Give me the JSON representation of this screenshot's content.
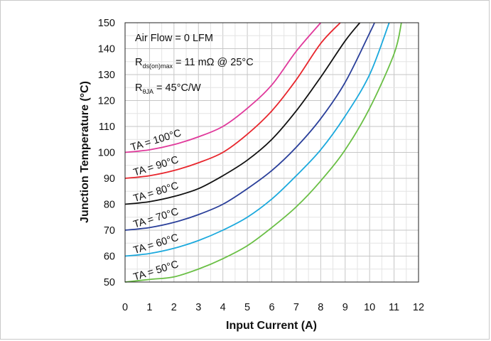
{
  "chart_data": {
    "type": "line",
    "xlabel": "Input Current (A)",
    "ylabel": "Junction Temperature (°C)",
    "xlim": [
      0,
      12
    ],
    "ylim": [
      50,
      150
    ],
    "x_ticks": [
      "0",
      "1",
      "2",
      "3",
      "4",
      "5",
      "6",
      "7",
      "8",
      "9",
      "10",
      "11",
      "12"
    ],
    "y_ticks": [
      "50",
      "60",
      "70",
      "80",
      "90",
      "100",
      "110",
      "120",
      "130",
      "140",
      "150"
    ],
    "grid": true,
    "annotations": {
      "air_flow": "Air Flow = 0 LFM",
      "rds_prefix": "R",
      "rds_sub": "ds(on)max",
      "rds_value": " = 11 mΩ @ 25°C",
      "rth_prefix": "R",
      "rth_sub": "θJA",
      "rth_value": " = 45°C/W"
    },
    "series": [
      {
        "label": "TA = 100°C",
        "color": "#e0399b",
        "x": [
          0,
          1,
          2,
          3,
          4,
          5,
          6,
          7,
          8
        ],
        "y": [
          100,
          101,
          103,
          106,
          110,
          117,
          126,
          139,
          150
        ]
      },
      {
        "label": "TA = 90°C",
        "color": "#e8262d",
        "x": [
          0,
          1,
          2,
          3,
          4,
          5,
          6,
          7,
          8,
          8.8
        ],
        "y": [
          90,
          91,
          93,
          96,
          100,
          107,
          116,
          128,
          142,
          150
        ]
      },
      {
        "label": "TA = 80°C",
        "color": "#111111",
        "x": [
          0,
          1,
          2,
          3,
          4,
          5,
          6,
          7,
          8,
          9,
          9.6
        ],
        "y": [
          80,
          81,
          83,
          86,
          91,
          97,
          105,
          116,
          129,
          143,
          150
        ]
      },
      {
        "label": "TA = 70°C",
        "color": "#2a3f9a",
        "x": [
          0,
          1,
          2,
          3,
          4,
          5,
          6,
          7,
          8,
          9,
          10,
          10.2
        ],
        "y": [
          70,
          71,
          73,
          76,
          80,
          86,
          93,
          102,
          113,
          127,
          146,
          150
        ]
      },
      {
        "label": "TA = 60°C",
        "color": "#1ba9dd",
        "x": [
          0,
          1,
          2,
          3,
          4,
          5,
          6,
          7,
          8,
          9,
          10,
          10.8
        ],
        "y": [
          60,
          61,
          63,
          66,
          70,
          75,
          82,
          91,
          101,
          114,
          130,
          150
        ]
      },
      {
        "label": "TA = 50°C",
        "color": "#6abf45",
        "x": [
          0,
          1,
          2,
          3,
          4,
          5,
          6,
          7,
          8,
          9,
          10,
          11,
          11.3
        ],
        "y": [
          50,
          51,
          52,
          55,
          59,
          64,
          71,
          79,
          89,
          101,
          117,
          138,
          150
        ]
      }
    ]
  }
}
